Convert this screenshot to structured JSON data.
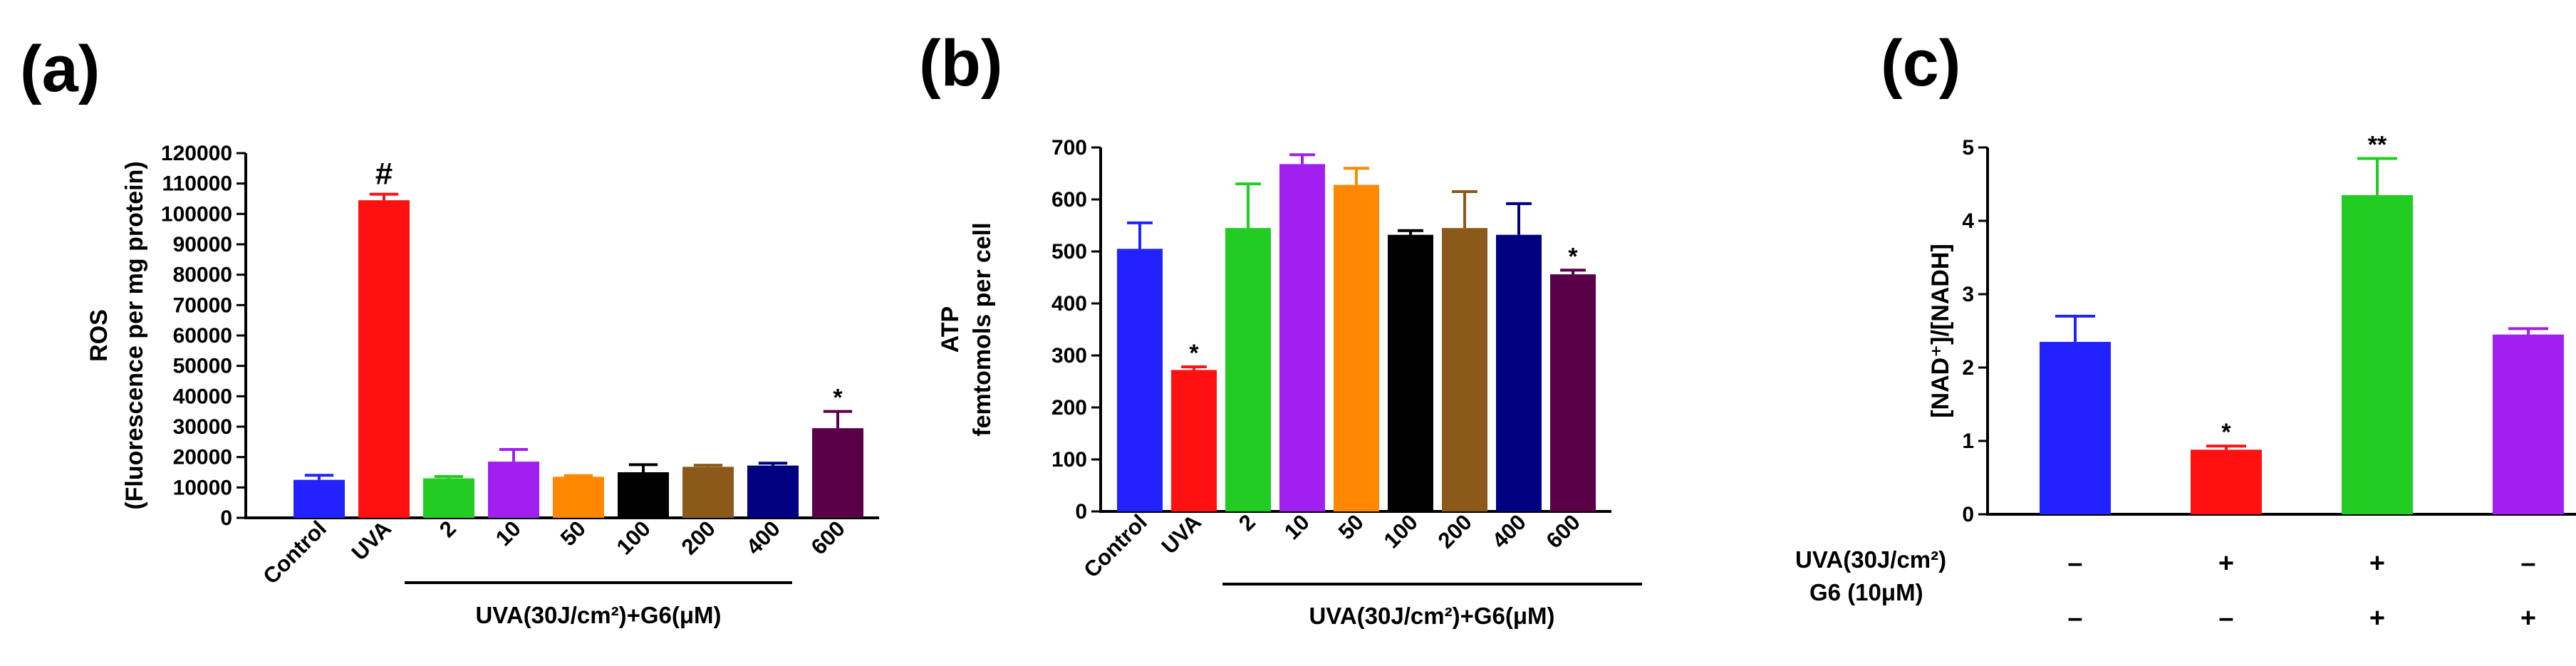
{
  "chart_data": [
    {
      "panel": "(a)",
      "type": "bar",
      "ylabel_line1": "ROS",
      "ylabel_line2": "(Fluorescence per mg protein)",
      "ylim": [
        0,
        120000
      ],
      "yticks": [
        0,
        10000,
        20000,
        30000,
        40000,
        50000,
        60000,
        70000,
        80000,
        90000,
        100000,
        110000,
        120000
      ],
      "categories": [
        "Control",
        "UVA",
        "2",
        "10",
        "50",
        "100",
        "200",
        "400",
        "600"
      ],
      "values": [
        12500,
        104500,
        13000,
        18500,
        13500,
        15000,
        16800,
        17200,
        29500
      ],
      "errors": [
        1500,
        2000,
        600,
        4000,
        400,
        2500,
        500,
        800,
        5500
      ],
      "colors": [
        "#2222ff",
        "#ff1111",
        "#22cc22",
        "#a020f0",
        "#ff8800",
        "#000000",
        "#8b5a1a",
        "#000080",
        "#5a0048"
      ],
      "annotations": [
        "",
        "#",
        "",
        "",
        "",
        "",
        "",
        "",
        "*"
      ],
      "group_label": "UVA(30J/cm²)+G6(μM)"
    },
    {
      "panel": "(b)",
      "type": "bar",
      "ylabel_line1": "ATP",
      "ylabel_line2": "femtomols per cell",
      "ylim": [
        0,
        700
      ],
      "yticks": [
        0,
        100,
        200,
        300,
        400,
        500,
        600,
        700
      ],
      "categories": [
        "Control",
        "UVA",
        "2",
        "10",
        "50",
        "100",
        "200",
        "400",
        "600"
      ],
      "values": [
        505,
        272,
        545,
        668,
        628,
        532,
        545,
        532,
        456
      ],
      "errors": [
        50,
        6,
        85,
        18,
        32,
        8,
        70,
        60,
        8
      ],
      "colors": [
        "#2222ff",
        "#ff1111",
        "#22cc22",
        "#a020f0",
        "#ff8800",
        "#000000",
        "#8b5a1a",
        "#000080",
        "#5a0048"
      ],
      "annotations": [
        "",
        "*",
        "",
        "",
        "",
        "",
        "",
        "",
        "*"
      ],
      "group_label": "UVA(30J/cm²)+G6(μM)"
    },
    {
      "panel": "(c)",
      "type": "bar",
      "ylabel": "[NAD⁺]/[NADH]",
      "ylim": [
        0,
        5
      ],
      "yticks": [
        0,
        1,
        2,
        3,
        4,
        5
      ],
      "values": [
        2.35,
        0.88,
        4.35,
        2.45
      ],
      "errors": [
        0.35,
        0.05,
        0.5,
        0.08
      ],
      "colors": [
        "#2222ff",
        "#ff1111",
        "#22cc22",
        "#a020f0"
      ],
      "annotations": [
        "",
        "*",
        "**",
        ""
      ],
      "row1_label": "UVA(30J/cm²)",
      "row1_signs": [
        "–",
        "+",
        "+",
        "–"
      ],
      "row2_label": "G6 (10μM)",
      "row2_signs": [
        "–",
        "–",
        "+",
        "+"
      ]
    }
  ]
}
